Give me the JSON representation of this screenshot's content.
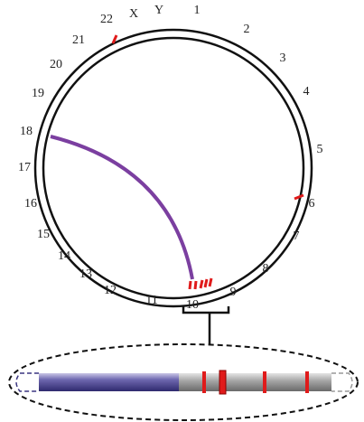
{
  "labels": [
    "1",
    "2",
    "3",
    "4",
    "5",
    "6",
    "7",
    "8",
    "9",
    "10",
    "11",
    "12",
    "13",
    "14",
    "15",
    "16",
    "17",
    "18",
    "19",
    "20",
    "21",
    "22",
    "X",
    "Y"
  ]
}
